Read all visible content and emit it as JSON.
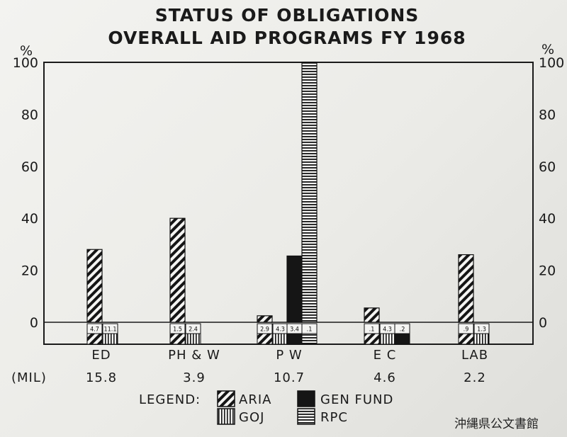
{
  "chart_data": {
    "type": "bar",
    "title_lines": [
      "STATUS OF OBLIGATIONS",
      "OVERALL AID PROGRAMS FY 1968"
    ],
    "ylabel_left": "%",
    "ylabel_right": "%",
    "y_ticks": [
      0,
      20,
      40,
      60,
      80,
      100
    ],
    "ylim": [
      0,
      100
    ],
    "categories": [
      "ED",
      "PH & W",
      "P W",
      "E C",
      "LAB"
    ],
    "totals_label": "(MIL)",
    "totals": [
      "15.8",
      "3.9",
      "10.7",
      "4.6",
      "2.2"
    ],
    "series": [
      {
        "name": "ARIA",
        "pattern": "diagonal-hatch",
        "values": [
          28,
          40,
          2.5,
          5.5,
          26
        ]
      },
      {
        "name": "GOJ",
        "pattern": "vertical-hatch",
        "values": [
          0,
          0,
          0,
          0,
          0
        ]
      },
      {
        "name": "GEN FUND",
        "pattern": "solid-black",
        "values": [
          null,
          null,
          25.5,
          0,
          null
        ]
      },
      {
        "name": "RPC",
        "pattern": "horizontal-hatch",
        "values": [
          null,
          null,
          100,
          null,
          null
        ]
      }
    ],
    "amount_labels": [
      [
        "4.7",
        "11.1"
      ],
      [
        "1.5",
        "2.4"
      ],
      [
        "2.9",
        "4.3",
        "3.4",
        ".1"
      ],
      [
        ".1",
        "4.3",
        ".2"
      ],
      [
        ".9",
        "1.3"
      ]
    ],
    "legend_title": "LEGEND:",
    "legend": [
      "ARIA",
      "GEN FUND",
      "GOJ",
      "RPC"
    ]
  },
  "archive_label": "沖縄県公文書館"
}
